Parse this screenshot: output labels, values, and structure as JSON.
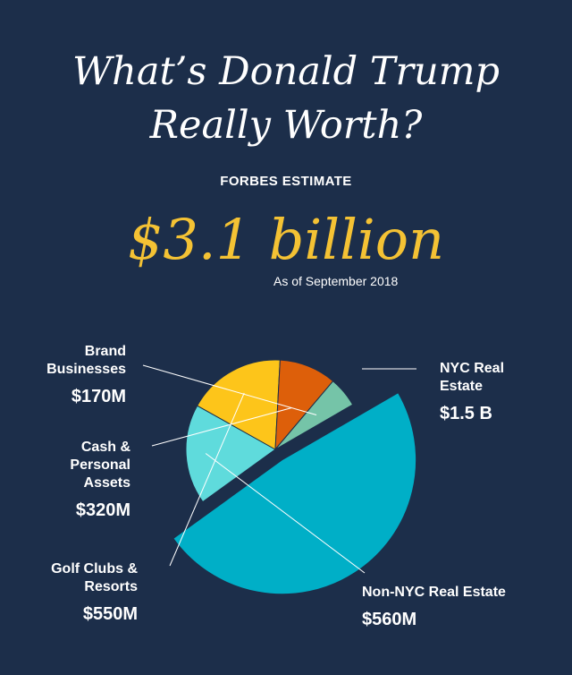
{
  "header": {
    "title_line1": "What’s Donald Trump",
    "title_line2": "Really Worth?",
    "eyebrow": "FORBES ESTIMATE",
    "total": "$3.1 billion",
    "as_of": "As of September 2018"
  },
  "chart_data": {
    "type": "pie",
    "unit": "USD millions",
    "categories": [
      "NYC Real Estate",
      "Non-NYC Real Estate",
      "Golf Clubs & Resorts",
      "Cash & Personal Assets",
      "Brand Businesses"
    ],
    "values": [
      1500,
      560,
      550,
      320,
      170
    ],
    "value_labels": [
      "$1.5 B",
      "$560M",
      "$550M",
      "$320M",
      "$170M"
    ],
    "colors": [
      "#00afc7",
      "#5fdbdc",
      "#fdc51a",
      "#dd5f0a",
      "#75c4a8"
    ],
    "exploded": "NYC Real Estate"
  },
  "labels": {
    "nyc_name_1": "NYC Real",
    "nyc_name_2": "Estate",
    "nyc_value": "$1.5 B",
    "nonnyc_name": "Non-NYC Real Estate",
    "nonnyc_value": "$560M",
    "golf_name_1": "Golf Clubs &",
    "golf_name_2": "Resorts",
    "golf_value": "$550M",
    "cash_name_1": "Cash &",
    "cash_name_2": "Personal",
    "cash_name_3": "Assets",
    "cash_value": "$320M",
    "brand_name_1": "Brand",
    "brand_name_2": "Businesses",
    "brand_value": "$170M"
  }
}
